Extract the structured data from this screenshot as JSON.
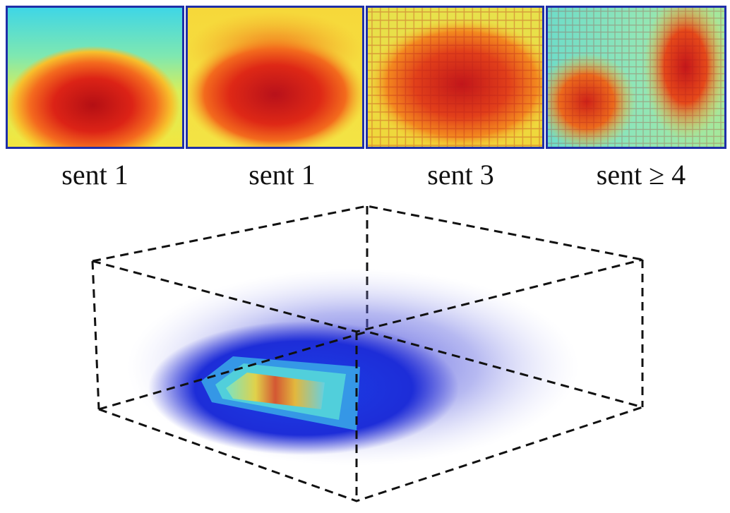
{
  "panels": [
    {
      "label": "sent 1",
      "pattern": "bottom-ellipse"
    },
    {
      "label": "sent 1",
      "pattern": "wide-rectangle"
    },
    {
      "label": "sent 3",
      "pattern": "diffuse-grid"
    },
    {
      "label": "sent ≥ 4",
      "pattern": "two-sided-sparse"
    }
  ],
  "colors": {
    "panel_border": "#1f2fa8",
    "cube_edges": "#111111",
    "volume_low": "#3a3fd8",
    "volume_high": "#e23a20"
  }
}
